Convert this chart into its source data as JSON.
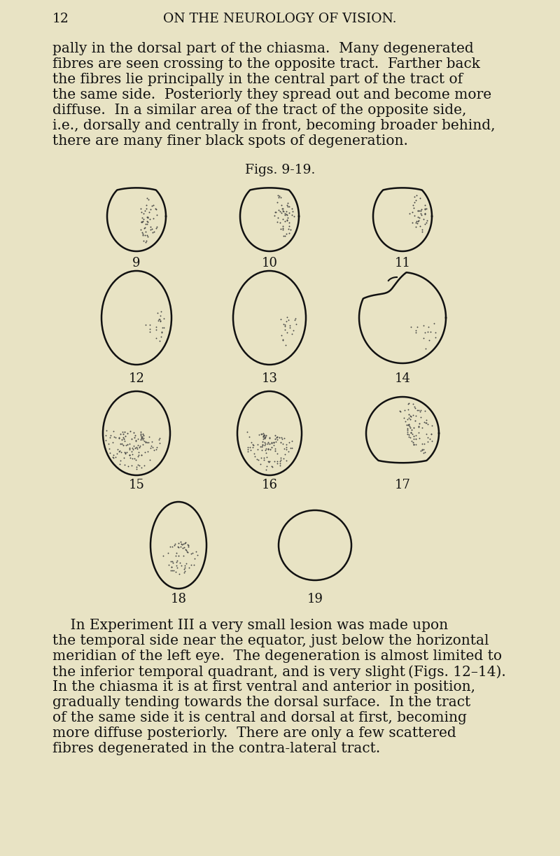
{
  "bg_color": "#e8e3c4",
  "page_number": "12",
  "header": "ON THE NEUROLOGY OF VISION.",
  "paragraph1_lines": [
    "pally in the dorsal part of the chiasma.  Many degenerated",
    "fibres are seen crossing to the opposite tract.  Farther back",
    "the fibres lie principally in the central part of the tract of",
    "the same side.  Posteriorly they spread out and become more",
    "diffuse.  In a similar area of the tract of the opposite side,",
    "i.e., dorsally and centrally in front, becoming broader behind,",
    "there are many finer black spots of degeneration."
  ],
  "fig_label": "Figs. 9-19.",
  "paragraph2_lines": [
    "    In Experiment III a very small lesion was made upon",
    "the temporal side near the equator, just below the horizontal",
    "meridian of the left eye.  The degeneration is almost limited to",
    "the inferior temporal quadrant, and is very slight (Figs. 12–14).",
    "In the chiasma it is at first ventral and anterior in position,",
    "gradually tending towards the dorsal surface.  In the tract",
    "of the same side it is central and dorsal at first, becoming",
    "more diffuse posteriorly.  There are only a few scattered",
    "fibres degenerated in the contra-lateral tract."
  ],
  "text_color": "#111111",
  "line_color": "#111111",
  "stipple_color": "#444444",
  "font_size_body": 14.5,
  "font_size_header": 13.5,
  "font_size_label": 13.5,
  "font_size_num": 13
}
